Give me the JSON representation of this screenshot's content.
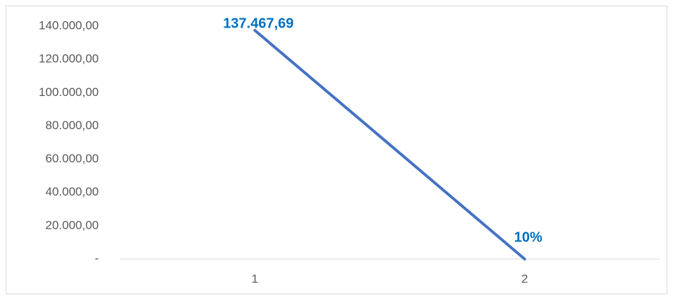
{
  "chart_data": {
    "type": "line",
    "categories": [
      "1",
      "2"
    ],
    "series": [
      {
        "color": "#4472c4",
        "values": [
          137467.69,
          0.1
        ],
        "value_labels": [
          "137.467,69",
          "10%"
        ]
      }
    ],
    "ylim": [
      0,
      140000
    ],
    "yticks": [
      {
        "value": 0,
        "label": "-"
      },
      {
        "value": 20000,
        "label": "20.000,00"
      },
      {
        "value": 40000,
        "label": "40.000,00"
      },
      {
        "value": 60000,
        "label": "60.000,00"
      },
      {
        "value": 80000,
        "label": "80.000,00"
      },
      {
        "value": 100000,
        "label": "100.000,00"
      },
      {
        "value": 120000,
        "label": "120.000,00"
      },
      {
        "value": 140000,
        "label": "140.000,00"
      }
    ],
    "grid": false
  }
}
